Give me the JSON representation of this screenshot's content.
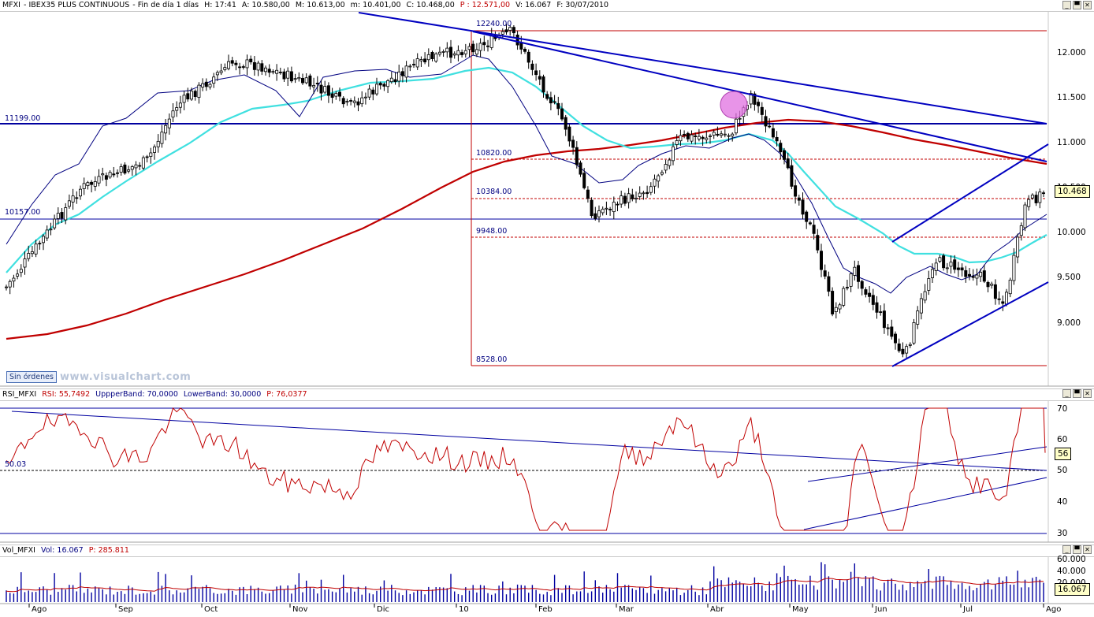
{
  "price_header": {
    "symbol": "MFXI",
    "description": "IBEX35 PLUS CONTINUOUS",
    "period": "Fin de día 1 días",
    "hour": "H: 17:41",
    "open": "A: 10.580,00",
    "high": "M: 10.613,00",
    "low": "m: 10.401,00",
    "close": "C: 10.468,00",
    "p": "P : 12.571,00",
    "vol": "V: 16.067",
    "date": "F: 30/07/2010"
  },
  "rsi_header": {
    "name": "RSI_MFXI",
    "rsi": "RSI: 55,7492",
    "upper": "UppperBand: 70,0000",
    "lower": "LowerBand: 30,0000",
    "p": "P: 76,0377"
  },
  "vol_header": {
    "name": "Vol_MFXI",
    "vol": "Vol: 16.067",
    "p": "P: 285.811"
  },
  "level_labels": {
    "l12240": "12240.00",
    "l11199": "11199.00",
    "l10820": "10820.00",
    "l10384": "10384.00",
    "l10157": "10157.00",
    "l9948": "9948.00",
    "l8528": "8528.00",
    "rsi_mid": "50.03"
  },
  "price_axis": [
    "12.000",
    "11.500",
    "11.000",
    "10.500",
    "10.000",
    "9.500",
    "9.000"
  ],
  "last_price": "10.468",
  "rsi_axis": [
    "70",
    "60",
    "50",
    "40",
    "30"
  ],
  "rsi_last": "56",
  "vol_axis": [
    "60.000",
    "40.000",
    "20.000"
  ],
  "vol_last": "16.067",
  "months": [
    "Ago",
    "Sep",
    "Oct",
    "Nov",
    "Dic",
    "10",
    "Feb",
    "Mar",
    "Abr",
    "May",
    "Jun",
    "Jul",
    "Ago"
  ],
  "sin_ordenes": "Sin órdenes",
  "watermark": "www.visualchart.com",
  "window_buttons": {
    "minimize": "_",
    "restore": "▀",
    "close": "✕"
  },
  "colors": {
    "candle_up": "#ffffff",
    "candle_down": "#000000",
    "ma_fast": "#000080",
    "ma_mid": "#40e0e0",
    "ma_slow": "#c00000",
    "trendline": "#0000c0",
    "rsi_line": "#c00000",
    "volume_bar": "#0000a0",
    "level_dashed": "#c00000"
  },
  "chart_data": {
    "type": "candlestick",
    "title": "MFXI - IBEX35 PLUS CONTINUOUS",
    "x_months": [
      "Ago",
      "Sep",
      "Oct",
      "Nov",
      "Dic",
      "10",
      "Feb",
      "Mar",
      "Abr",
      "May",
      "Jun",
      "Jul",
      "Ago"
    ],
    "close_path": [
      [
        "Ago",
        9400
      ],
      [
        "Ago",
        10500
      ],
      [
        "Sep",
        10800
      ],
      [
        "Sep",
        11400
      ],
      [
        "Oct",
        11900
      ],
      [
        "Oct",
        11850
      ],
      [
        "Nov",
        11600
      ],
      [
        "Nov",
        11400
      ],
      [
        "Dic",
        11800
      ],
      [
        "Dic",
        11950
      ],
      [
        "10",
        12100
      ],
      [
        "10",
        12240
      ],
      [
        "Feb",
        11200
      ],
      [
        "Feb",
        10200
      ],
      [
        "Mar",
        10500
      ],
      [
        "Mar",
        11050
      ],
      [
        "Abr",
        11100
      ],
      [
        "Abr",
        11550
      ],
      [
        "Abr",
        11100
      ],
      [
        "May",
        10000
      ],
      [
        "May",
        9100
      ],
      [
        "May",
        9600
      ],
      [
        "Jun",
        8600
      ],
      [
        "Jun",
        9700
      ],
      [
        "Jul",
        9500
      ],
      [
        "Jul",
        9200
      ],
      [
        "Jul",
        10300
      ],
      [
        "Ago",
        10468
      ]
    ],
    "levels": [
      12240,
      11199,
      10820,
      10384,
      10157,
      9948,
      8528
    ],
    "moving_averages": [
      "fast (navy)",
      "medium (cyan)",
      "slow (red)"
    ],
    "ylim": [
      8500,
      12400
    ],
    "last_close": 10468,
    "rsi": {
      "last": 55.7492,
      "upper_band": 70,
      "lower_band": 30,
      "ylim": [
        28,
        72
      ]
    },
    "volume": {
      "last": 16067,
      "ylim": [
        0,
        60000
      ]
    }
  }
}
